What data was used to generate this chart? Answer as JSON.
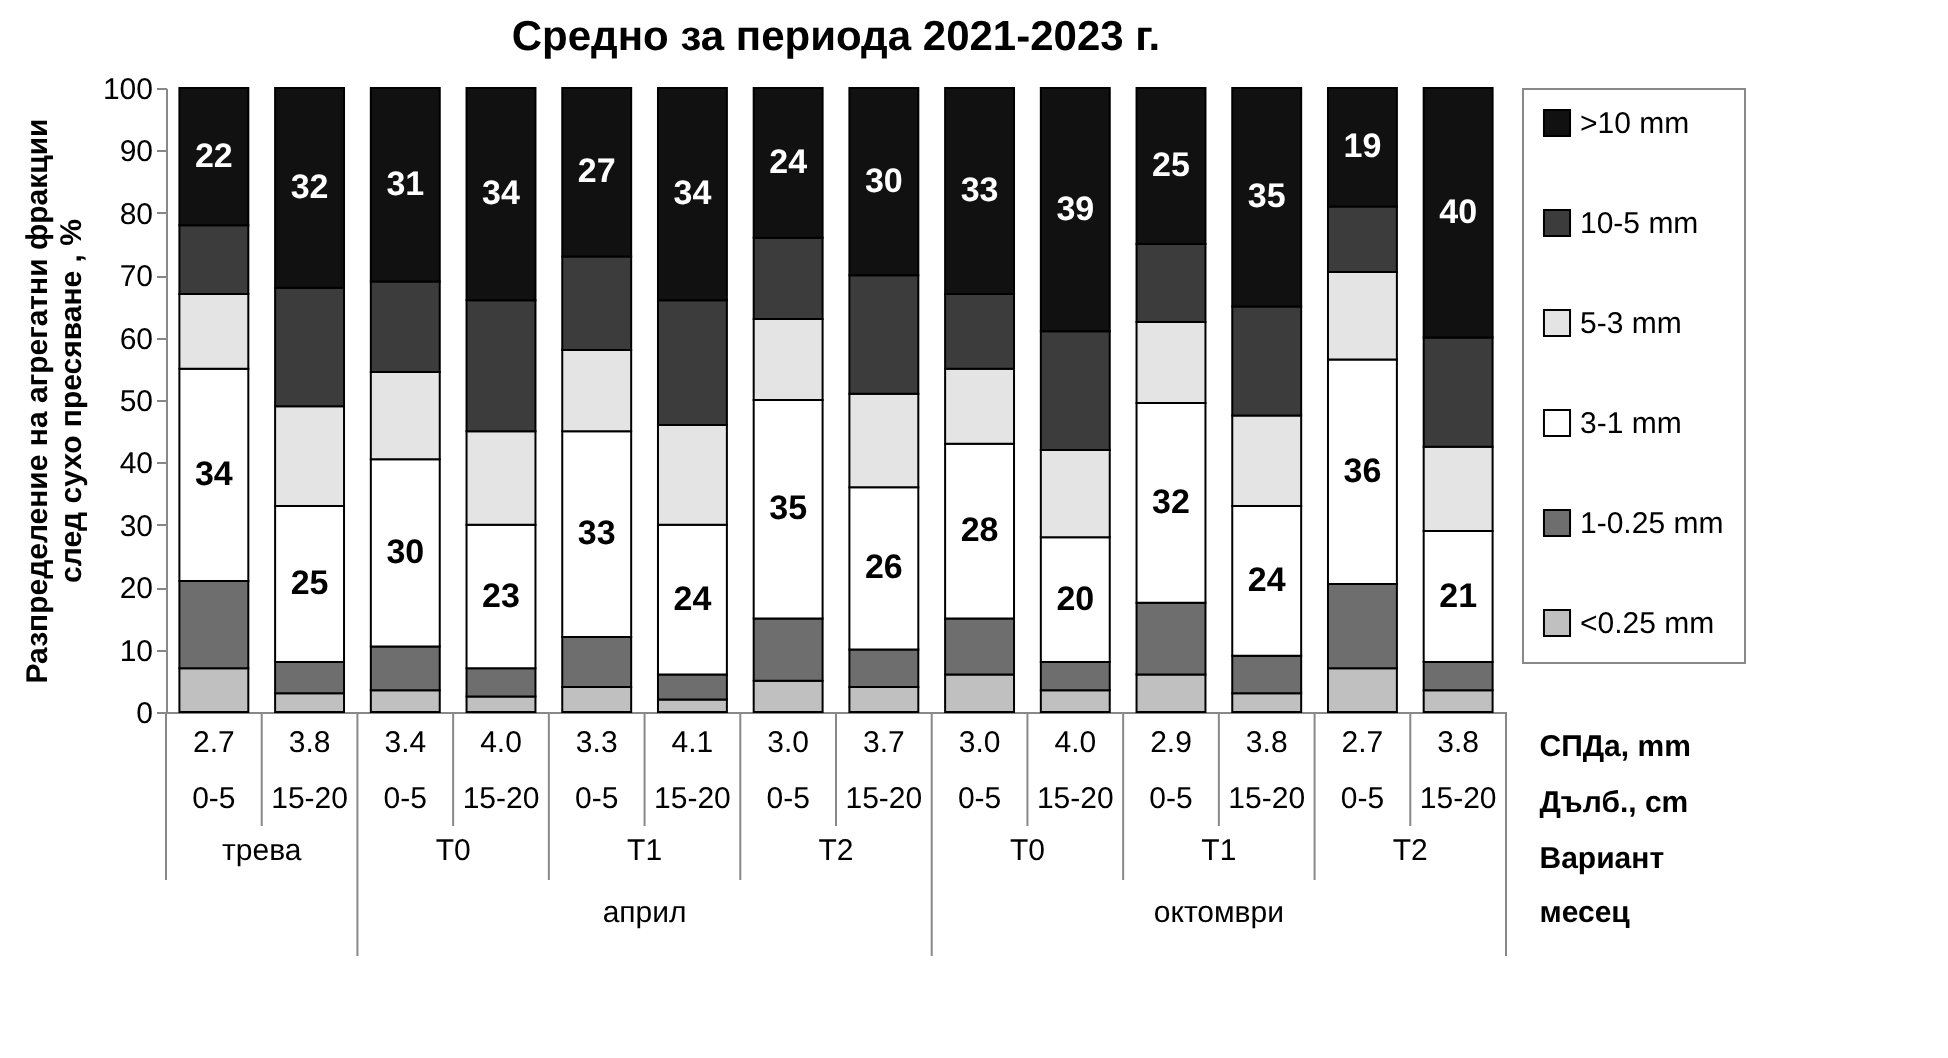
{
  "chart_data": {
    "type": "bar",
    "stacked": true,
    "title": "Средно за периода 2021-2023  г.",
    "ylabel": "Разпределение на агрегатни фракции\nслед сухо пресяване , %",
    "categories": [
      "2.7",
      "3.8",
      "3.4",
      "4.0",
      "3.3",
      "4.1",
      "3.0",
      "3.7",
      "3.0",
      "4.0",
      "2.9",
      "3.8",
      "2.7",
      "3.8"
    ],
    "series": [
      {
        "name": "<0.25 mm",
        "color": "#c0c0c0",
        "values": [
          7,
          3,
          3.5,
          2.5,
          4,
          2,
          5,
          4,
          6,
          3.5,
          6,
          3,
          7,
          3.5
        ]
      },
      {
        "name": "1-0.25 mm",
        "color": "#6e6e6e",
        "values": [
          14,
          5,
          7,
          4.5,
          8,
          4,
          10,
          6,
          9,
          4.5,
          11.5,
          6,
          13.5,
          4.5
        ]
      },
      {
        "name": "3-1 mm",
        "color": "#ffffff",
        "values": [
          34,
          25,
          30,
          23,
          33,
          24,
          35,
          26,
          28,
          20,
          32,
          24,
          36,
          21
        ],
        "value_labels": [
          "34",
          "25",
          "30",
          "23",
          "33",
          "24",
          "35",
          "26",
          "28",
          "20",
          "32",
          "24",
          "36",
          "21"
        ]
      },
      {
        "name": "5-3 mm",
        "color": "#e4e4e4",
        "values": [
          12,
          16,
          14,
          15,
          13,
          16,
          13,
          15,
          12,
          14,
          13,
          14.5,
          14,
          13.5
        ]
      },
      {
        "name": "10-5 mm",
        "color": "#3c3c3c",
        "values": [
          11,
          19,
          14.5,
          21,
          15,
          20,
          13,
          19,
          12,
          19,
          12.5,
          17.5,
          10.5,
          17.5
        ]
      },
      {
        "name": ">10 mm",
        "color": "#111111",
        "values": [
          22,
          32,
          31,
          34,
          27,
          34,
          24,
          30,
          33,
          39,
          25,
          35,
          19,
          40
        ],
        "value_labels": [
          "22",
          "32",
          "31",
          "34",
          "27",
          "34",
          "24",
          "30",
          "33",
          "39",
          "25",
          "35",
          "19",
          "40"
        ]
      }
    ],
    "ylim": [
      0,
      100
    ],
    "yticks": [
      0,
      10,
      20,
      30,
      40,
      50,
      60,
      70,
      80,
      90,
      100
    ],
    "grid": false,
    "legend": "right",
    "annotations": [
      "0-5",
      "15-20",
      "0-5",
      "15-20",
      "0-5",
      "15-20",
      "0-5",
      "15-20",
      "0-5",
      "15-20",
      "0-5",
      "15-20",
      "0-5",
      "15-20",
      "трева",
      "T0",
      "T1",
      "T2",
      "T0",
      "T1",
      "T2",
      "април",
      "октомври",
      "СПДа, mm",
      "Дълб., cm",
      "Вариант",
      "месец"
    ]
  }
}
